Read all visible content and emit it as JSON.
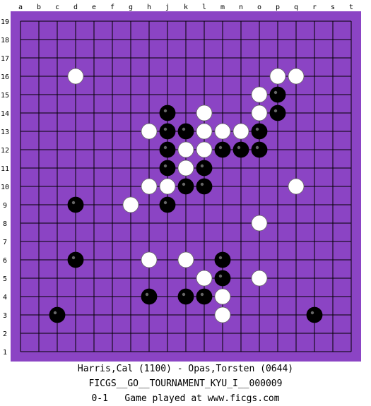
{
  "board": {
    "size": 19,
    "board_color": "#8B44C4",
    "line_color": "#000000",
    "column_labels": [
      "a",
      "b",
      "c",
      "d",
      "e",
      "f",
      "g",
      "h",
      "j",
      "k",
      "l",
      "m",
      "n",
      "o",
      "p",
      "q",
      "r",
      "s",
      "t"
    ],
    "row_labels": [
      "1",
      "2",
      "3",
      "4",
      "5",
      "6",
      "7",
      "8",
      "9",
      "10",
      "11",
      "12",
      "13",
      "14",
      "15",
      "16",
      "17",
      "18",
      "19"
    ],
    "stones": {
      "black": [
        "j14",
        "j13",
        "k13",
        "o13",
        "j12",
        "m12",
        "n12",
        "o12",
        "j11",
        "l11",
        "k10",
        "l10",
        "d9",
        "j9",
        "d6",
        "m6",
        "m5",
        "h4",
        "k4",
        "l4",
        "c3",
        "r3",
        "p15",
        "p14"
      ],
      "white": [
        "d16",
        "p16",
        "q16",
        "o15",
        "l14",
        "o14",
        "h13",
        "l13",
        "m13",
        "n13",
        "k12",
        "l12",
        "k11",
        "h10",
        "j10",
        "q10",
        "g9",
        "o8",
        "h6",
        "k6",
        "l5",
        "o5",
        "m4",
        "m3"
      ]
    }
  },
  "footer": {
    "players": "Harris,Cal (1100) - Opas,Torsten (0644)",
    "event": "FICGS__GO__TOURNAMENT_KYU_I__000009",
    "result": "0-1   Game played at www.ficgs.com"
  }
}
